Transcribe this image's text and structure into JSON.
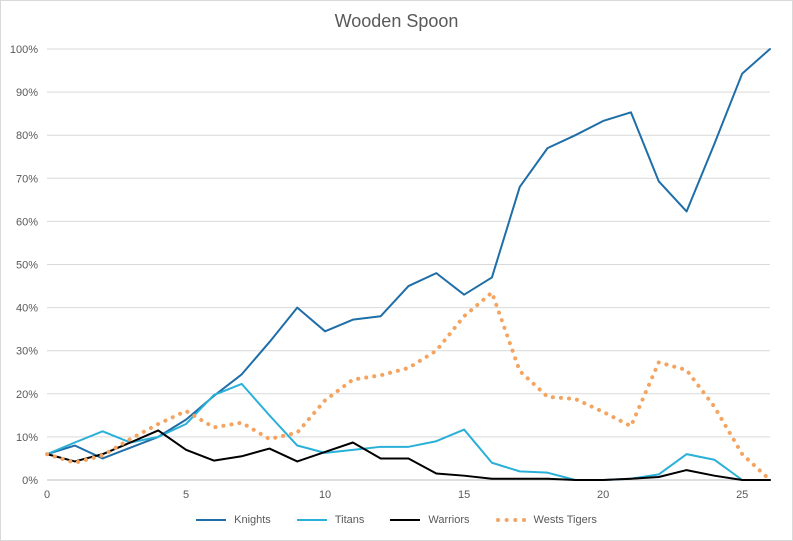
{
  "chart_data": {
    "type": "line",
    "title": "Wooden Spoon",
    "xlabel": "",
    "ylabel": "",
    "xlim": [
      0,
      26
    ],
    "ylim": [
      0,
      100
    ],
    "x_ticks": [
      0,
      5,
      10,
      15,
      20,
      25
    ],
    "y_ticks": [
      0,
      10,
      20,
      30,
      40,
      50,
      60,
      70,
      80,
      90,
      100
    ],
    "y_tick_format": "percent",
    "grid": "horizontal",
    "legend_position": "bottom",
    "x": [
      0,
      1,
      2,
      3,
      4,
      5,
      6,
      7,
      8,
      9,
      10,
      11,
      12,
      13,
      14,
      15,
      16,
      17,
      18,
      19,
      20,
      21,
      22,
      23,
      24,
      25,
      26
    ],
    "series": [
      {
        "name": "Knights",
        "color": "#1f6ea8",
        "style": "solid",
        "values": [
          6,
          8,
          5,
          7.5,
          10,
          14,
          19.5,
          24.5,
          32,
          40,
          34.5,
          37.2,
          38,
          45,
          48,
          43,
          47,
          68,
          77,
          80,
          83.3,
          85.3,
          69.3,
          62.3,
          78,
          94.3,
          100
        ]
      },
      {
        "name": "Titans",
        "color": "#2ab0d8",
        "style": "solid",
        "values": [
          6,
          8.7,
          11.3,
          8.7,
          10,
          13,
          19.7,
          22.3,
          15,
          8,
          6.3,
          7,
          7.7,
          7.7,
          9,
          11.7,
          4,
          2,
          1.7,
          0,
          0,
          0.3,
          1.3,
          6,
          4.7,
          0,
          0
        ]
      },
      {
        "name": "Warriors",
        "color": "#000000",
        "style": "solid",
        "values": [
          6,
          4.3,
          6,
          8.7,
          11.5,
          7,
          4.5,
          5.5,
          7.3,
          4.3,
          6.5,
          8.7,
          5,
          5,
          1.5,
          1,
          0.3,
          0.3,
          0.3,
          0,
          0,
          0.3,
          0.7,
          2.3,
          1,
          0,
          0
        ]
      },
      {
        "name": "Wests Tigers",
        "color": "#f4a460",
        "style": "dotted",
        "values": [
          6,
          4,
          5.7,
          9.5,
          13,
          16,
          12.2,
          13.3,
          9.5,
          11,
          18.5,
          23.3,
          24.3,
          26,
          30,
          38,
          43.5,
          25.3,
          19.3,
          18.8,
          15.8,
          12.5,
          27.3,
          25.5,
          17,
          6,
          0
        ]
      }
    ]
  }
}
